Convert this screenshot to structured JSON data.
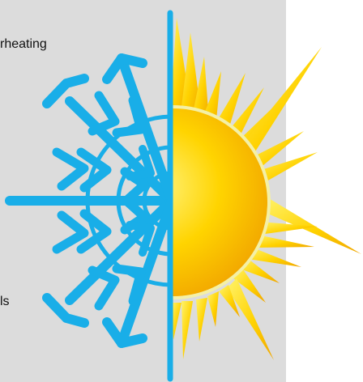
{
  "labels": {
    "top": "rheating",
    "bottom": "ls"
  },
  "colors": {
    "background": "#ffffff",
    "panel": "#dcdcdc",
    "snowflake": "#19aee8",
    "sun_light": "#fff27a",
    "sun_mid": "#ffd400",
    "sun_dark": "#f2a700"
  },
  "icons": {
    "left": "snowflake-icon",
    "right": "sun-icon"
  }
}
